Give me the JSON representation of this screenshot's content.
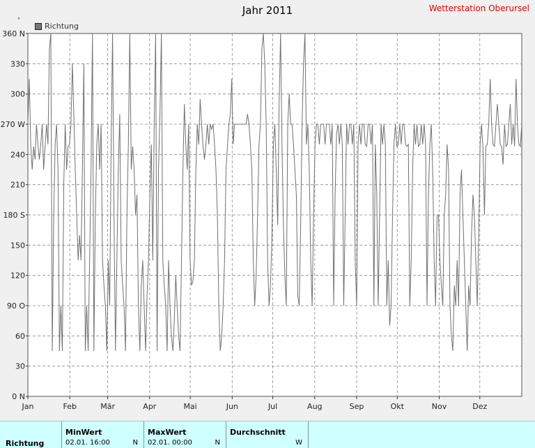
{
  "header": {
    "title": "Jahr 2011",
    "station": "Wetterstation Oberursel",
    "unit": "°"
  },
  "legend": {
    "label": "Richtung"
  },
  "chart_data": {
    "type": "line",
    "title": "Jahr 2011",
    "ylim": [
      0,
      360
    ],
    "y_ticks": [
      0,
      30,
      60,
      90,
      120,
      150,
      180,
      210,
      240,
      270,
      300,
      330,
      360
    ],
    "y_tick_labels": [
      "0 N",
      "30",
      "60",
      "90  O",
      "120",
      "150",
      "180 S",
      "210",
      "240",
      "270 W",
      "300",
      "330",
      "360 N"
    ],
    "x_month_labels": [
      "Jan",
      "Feb",
      "Mär",
      "Apr",
      "Mai",
      "Jun",
      "Jul",
      "Aug",
      "Sep",
      "Okt",
      "Nov",
      "Dez"
    ],
    "grid": true,
    "legend_position": "top-left",
    "series_color": "#707070",
    "series": [
      {
        "name": "Richtung",
        "values": [
          270,
          315,
          250,
          225,
          248,
          235,
          270,
          250,
          235,
          250,
          270,
          225,
          248,
          270,
          250,
          345,
          360,
          45,
          180,
          250,
          270,
          225,
          45,
          90,
          45,
          210,
          270,
          225,
          248,
          250,
          270,
          330,
          280,
          225,
          180,
          135,
          160,
          135,
          225,
          330,
          45,
          90,
          45,
          135,
          225,
          360,
          45,
          180,
          250,
          270,
          225,
          270,
          135,
          110,
          90,
          45,
          135,
          90,
          250,
          360,
          180,
          45,
          135,
          225,
          280,
          135,
          110,
          90,
          45,
          180,
          250,
          360,
          225,
          248,
          225,
          180,
          200,
          90,
          45,
          110,
          135,
          90,
          45,
          100,
          135,
          200,
          250,
          135,
          270,
          360,
          45,
          225,
          280,
          360,
          135,
          110,
          90,
          45,
          135,
          90,
          60,
          45,
          75,
          120,
          90,
          60,
          45,
          135,
          225,
          290,
          250,
          225,
          270,
          135,
          110,
          115,
          135,
          225,
          270,
          250,
          295,
          270,
          248,
          235,
          250,
          270,
          250,
          270,
          265,
          270,
          250,
          225,
          180,
          90,
          45,
          60,
          90,
          135,
          225,
          248,
          270,
          280,
          315,
          250,
          270,
          270,
          270,
          270,
          270,
          270,
          270,
          270,
          270,
          280,
          270,
          250,
          225,
          135,
          90,
          120,
          180,
          250,
          270,
          345,
          360,
          330,
          270,
          135,
          90,
          110,
          160,
          250,
          270,
          225,
          170,
          290,
          360,
          250,
          170,
          120,
          90,
          270,
          300,
          270,
          270,
          250,
          225,
          200,
          100,
          90,
          170,
          270,
          330,
          360,
          250,
          270,
          225,
          135,
          90,
          180,
          250,
          270,
          270,
          250,
          270,
          270,
          270,
          250,
          270,
          270,
          270,
          250,
          270,
          90,
          200,
          260,
          270,
          250,
          270,
          250,
          90,
          180,
          270,
          250,
          270,
          270,
          250,
          270,
          135,
          90,
          250,
          270,
          250,
          270,
          270,
          250,
          248,
          270,
          270,
          250,
          270,
          90,
          250,
          200,
          90,
          180,
          270,
          250,
          270,
          250,
          90,
          135,
          70,
          90,
          180,
          250,
          270,
          248,
          250,
          270,
          250,
          270,
          270,
          250,
          248,
          250,
          90,
          135,
          225,
          270,
          250,
          270,
          248,
          250,
          270,
          250,
          270,
          250,
          90,
          200,
          250,
          270,
          220,
          135,
          90,
          180,
          180,
          135,
          110,
          90,
          180,
          200,
          250,
          225,
          90,
          60,
          45,
          110,
          90,
          135,
          90,
          200,
          225,
          180,
          135,
          90,
          45,
          110,
          90,
          160,
          200,
          180,
          135,
          90,
          160,
          250,
          270,
          245,
          180,
          248,
          250,
          270,
          315,
          270,
          250,
          248,
          270,
          290,
          270,
          250,
          248,
          230,
          270,
          248,
          250,
          270,
          290,
          250,
          270,
          248,
          315,
          270,
          250,
          248,
          270
        ]
      }
    ]
  },
  "stats": {
    "row_label": "Richtung",
    "columns": [
      {
        "header": "MinWert",
        "date": "02.01.  16:00",
        "direction": "N"
      },
      {
        "header": "MaxWert",
        "date": "02.01.  00:00",
        "direction": "N"
      },
      {
        "header": "Durchschnitt",
        "date": "",
        "direction": "W"
      }
    ]
  }
}
